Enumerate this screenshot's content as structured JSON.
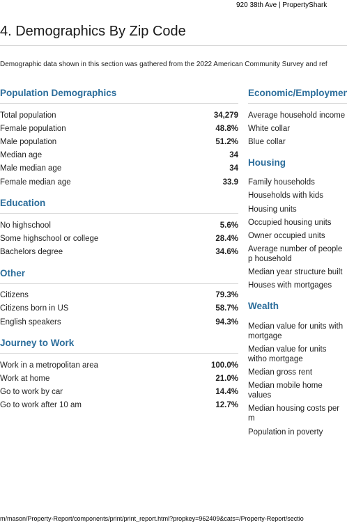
{
  "header": {
    "text": "920 38th Ave | PropertyShark"
  },
  "section": {
    "title": "4. Demographics By Zip Code",
    "intro": "Demographic data shown in this section was gathered from the 2022 American Community Survey and ref"
  },
  "left": [
    {
      "heading": "Population Demographics",
      "rows": [
        {
          "label": "Total population",
          "value": "34,279"
        },
        {
          "label": "Female population",
          "value": "48.8%"
        },
        {
          "label": "Male population",
          "value": "51.2%"
        },
        {
          "label": "Median age",
          "value": "34"
        },
        {
          "label": "Male median age",
          "value": "34"
        },
        {
          "label": "Female median age",
          "value": "33.9"
        }
      ]
    },
    {
      "heading": "Education",
      "rows": [
        {
          "label": "No highschool",
          "value": "5.6%"
        },
        {
          "label": "Some highschool or college",
          "value": "28.4%"
        },
        {
          "label": "Bachelors degree",
          "value": "34.6%"
        }
      ]
    },
    {
      "heading": "Other",
      "rows": [
        {
          "label": "Citizens",
          "value": "79.3%"
        },
        {
          "label": "Citizens born in US",
          "value": "58.7%"
        },
        {
          "label": "English speakers",
          "value": "94.3%"
        }
      ]
    },
    {
      "heading": "Journey to Work",
      "rows": [
        {
          "label": "Work in a metropolitan area",
          "value": "100.0%"
        },
        {
          "label": "Work at home",
          "value": "21.0%"
        },
        {
          "label": "Go to work by car",
          "value": "14.4%"
        },
        {
          "label": "Go to work after 10 am",
          "value": "12.7%"
        }
      ]
    }
  ],
  "right": [
    {
      "heading": "Economic/Employmen",
      "rule": true,
      "rows": [
        {
          "label": "Average household income"
        },
        {
          "label": "White collar"
        },
        {
          "label": "Blue collar"
        }
      ]
    },
    {
      "heading": "Housing",
      "rule": false,
      "rows": [
        {
          "label": "Family households"
        },
        {
          "label": "Households with kids"
        },
        {
          "label": "Housing units"
        },
        {
          "label": "Occupied housing units"
        },
        {
          "label": "Owner occupied units"
        },
        {
          "label": "Average number of people p household"
        },
        {
          "label": "Median year structure built"
        },
        {
          "label": "Houses with mortgages"
        }
      ]
    },
    {
      "heading": "Wealth",
      "rule": false,
      "rows": [
        {
          "label": "Median value for units with mortgage"
        },
        {
          "label": "Median value for units witho mortgage"
        },
        {
          "label": "Median gross rent"
        },
        {
          "label": "Median mobile home values"
        },
        {
          "label": "Median housing costs per m"
        },
        {
          "label": "Population in poverty"
        }
      ]
    }
  ],
  "footer": {
    "url": "m/mason/Property-Report/components/print/print_report.html?propkey=962409&cats=/Property-Report/sectio"
  }
}
